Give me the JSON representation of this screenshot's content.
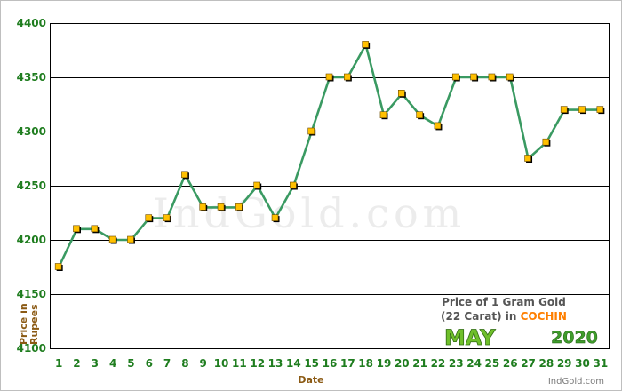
{
  "chart_data": {
    "type": "line",
    "title": "",
    "xlabel": "Date",
    "ylabel": "Price in Rupees",
    "ylim": [
      4100,
      4400
    ],
    "yticks": [
      4100,
      4150,
      4200,
      4250,
      4300,
      4350,
      4400
    ],
    "x": [
      1,
      2,
      3,
      4,
      5,
      6,
      7,
      8,
      9,
      10,
      11,
      12,
      13,
      14,
      15,
      16,
      17,
      18,
      19,
      20,
      21,
      22,
      23,
      24,
      25,
      26,
      27,
      28,
      29,
      30,
      31
    ],
    "series": [
      {
        "values": [
          4175,
          4210,
          4210,
          4200,
          4200,
          4220,
          4220,
          4260,
          4230,
          4230,
          4230,
          4250,
          4220,
          4250,
          4300,
          4350,
          4350,
          4380,
          4315,
          4335,
          4315,
          4305,
          4350,
          4350,
          4350,
          4350,
          4275,
          4290,
          4320,
          4320,
          4320
        ],
        "line_color": "#3a9a62",
        "marker_color": "#ffc000"
      }
    ],
    "grid": true
  },
  "watermark": "IndGold.com",
  "info_box": {
    "line1": "Price of 1 Gram Gold",
    "line2_prefix": "(22 Carat) in ",
    "city": "COCHIN",
    "month": "MAY",
    "year": "2020",
    "credit": "IndGold.com"
  },
  "colors": {
    "tick_text": "#1f7d1f",
    "axis_title": "#8b5a14",
    "city": "#ff7f00",
    "month": "#6fbf2a",
    "year": "#3f9c2c"
  }
}
